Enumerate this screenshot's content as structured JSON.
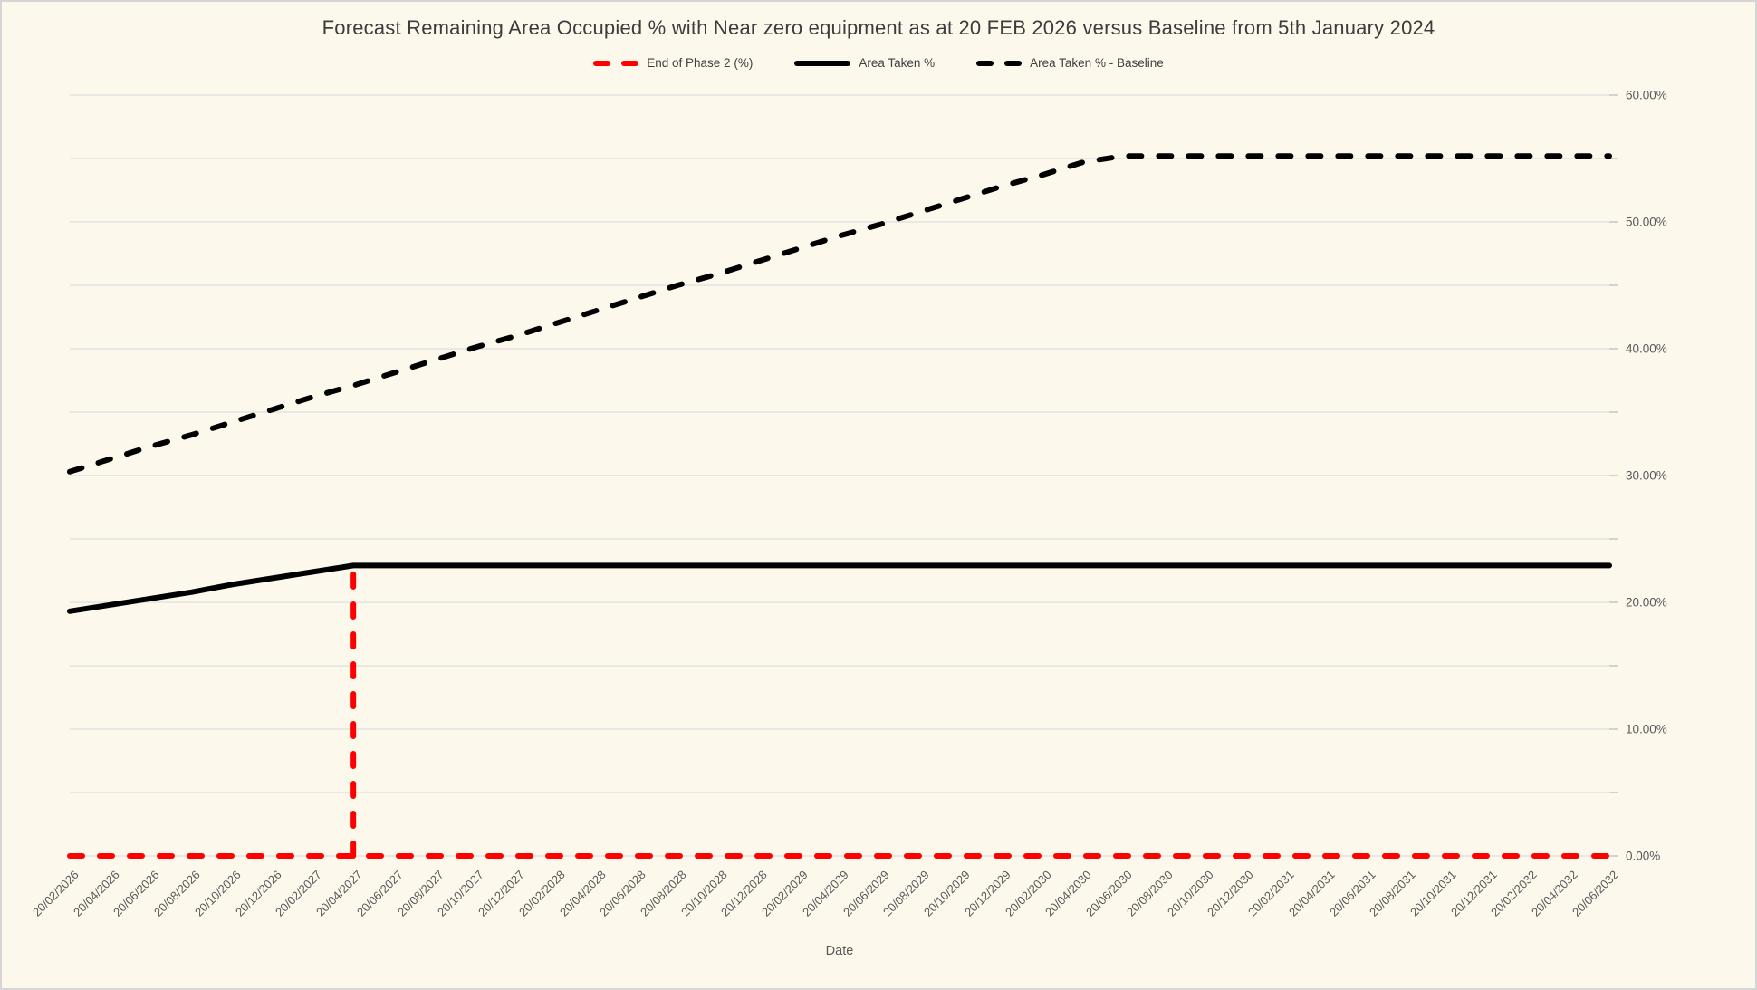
{
  "page": {
    "background_color": "#FDF8EC",
    "border_color": "#D5D5D5",
    "gridline_color": "#DEDEDE",
    "tick_color": "#BDBDBD",
    "text_color": "#595959"
  },
  "legend": {
    "items": [
      {
        "label": "End of Phase 2 (%)",
        "color": "#FF0000",
        "style": "dashed"
      },
      {
        "label": "Area Taken %",
        "color": "#000000",
        "style": "solid"
      },
      {
        "label": "Area Taken % - Baseline",
        "color": "#000000",
        "style": "dashed"
      }
    ]
  },
  "y_axis_labels": [
    "0.00%",
    "10.00%",
    "20.00%",
    "30.00%",
    "40.00%",
    "50.00%",
    "60.00%"
  ],
  "chart_data": {
    "type": "line",
    "title": "Forecast Remaining Area Occupied % with Near zero equipment as at 20 FEB 2026 versus Baseline from 5th January 2024",
    "xlabel": "Date",
    "ylabel": "",
    "ylim": [
      0,
      60
    ],
    "y_major_tick_step": 10,
    "y_gridline_step": 5,
    "y_axis_side": "right",
    "grid": true,
    "legend_position": "top",
    "categories": [
      "20/02/2026",
      "20/04/2026",
      "20/06/2026",
      "20/08/2026",
      "20/10/2026",
      "20/12/2026",
      "20/02/2027",
      "20/04/2027",
      "20/06/2027",
      "20/08/2027",
      "20/10/2027",
      "20/12/2027",
      "20/02/2028",
      "20/04/2028",
      "20/06/2028",
      "20/08/2028",
      "20/10/2028",
      "20/12/2028",
      "20/02/2029",
      "20/04/2029",
      "20/06/2029",
      "20/08/2029",
      "20/10/2029",
      "20/12/2029",
      "20/02/2030",
      "20/04/2030",
      "20/06/2030",
      "20/08/2030",
      "20/10/2030",
      "20/12/2030",
      "20/02/2031",
      "20/04/2031",
      "20/06/2031",
      "20/08/2031",
      "20/10/2031",
      "20/12/2031",
      "20/02/2032",
      "20/04/2032",
      "20/06/2032"
    ],
    "series": [
      {
        "name": "End of Phase 2 (%)",
        "color": "#FF0000",
        "style": "dashed",
        "render": "baseline-with-vertical-spike",
        "baseline_value": 0,
        "spike": {
          "category": "20/04/2027",
          "value": 22.9
        }
      },
      {
        "name": "Area Taken %",
        "color": "#000000",
        "style": "solid",
        "values": [
          19.3,
          19.8,
          20.3,
          20.8,
          21.4,
          21.9,
          22.4,
          22.9,
          22.9,
          22.9,
          22.9,
          22.9,
          22.9,
          22.9,
          22.9,
          22.9,
          22.9,
          22.9,
          22.9,
          22.9,
          22.9,
          22.9,
          22.9,
          22.9,
          22.9,
          22.9,
          22.9,
          22.9,
          22.9,
          22.9,
          22.9,
          22.9,
          22.9,
          22.9,
          22.9,
          22.9,
          22.9,
          22.9,
          22.9
        ]
      },
      {
        "name": "Area Taken % - Baseline",
        "color": "#000000",
        "style": "dashed",
        "values": [
          30.3,
          31.3,
          32.3,
          33.2,
          34.2,
          35.2,
          36.2,
          37.1,
          38.1,
          39.1,
          40.1,
          41.0,
          42.0,
          43.0,
          44.0,
          45.0,
          45.9,
          46.9,
          47.9,
          48.9,
          49.8,
          50.8,
          51.8,
          52.8,
          53.7,
          54.7,
          55.2,
          55.2,
          55.2,
          55.2,
          55.2,
          55.2,
          55.2,
          55.2,
          55.2,
          55.2,
          55.2,
          55.2,
          55.2
        ]
      }
    ]
  }
}
